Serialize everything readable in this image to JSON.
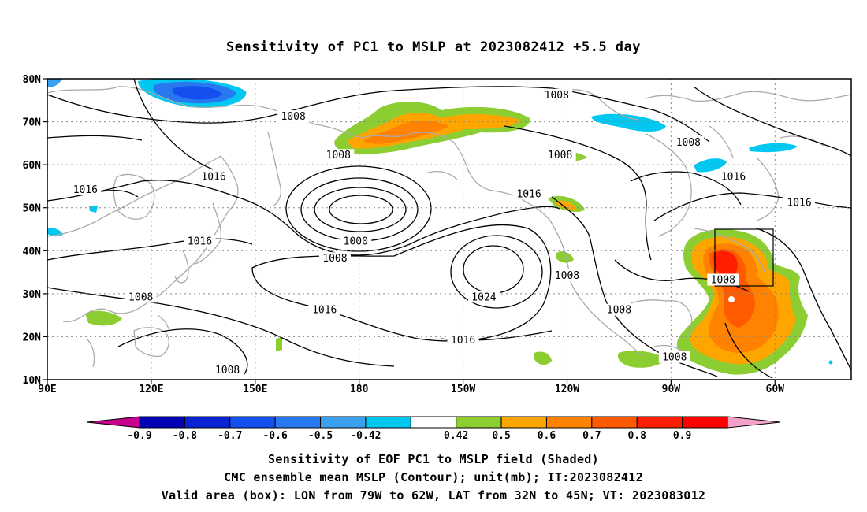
{
  "title": "Sensitivity of PC1 to MSLP at 2023082412 +5.5 day",
  "axes": {
    "lat_labels": [
      "80N",
      "70N",
      "60N",
      "50N",
      "40N",
      "30N",
      "20N",
      "10N"
    ],
    "lon_labels": [
      "90E",
      "120E",
      "150E",
      "180",
      "150W",
      "120W",
      "90W",
      "60W"
    ]
  },
  "contour_labels": [
    {
      "text": "1008",
      "lon": -123,
      "lat": 76
    },
    {
      "text": "1008",
      "lon": 161,
      "lat": 71
    },
    {
      "text": "1008",
      "lon": -85,
      "lat": 65
    },
    {
      "text": "1008",
      "lon": -122,
      "lat": 62
    },
    {
      "text": "1008",
      "lon": 174,
      "lat": 62
    },
    {
      "text": "1016",
      "lon": 101,
      "lat": 54
    },
    {
      "text": "1016",
      "lon": 138,
      "lat": 57
    },
    {
      "text": "1016",
      "lon": -72,
      "lat": 57
    },
    {
      "text": "1016",
      "lon": -131,
      "lat": 53
    },
    {
      "text": "1016",
      "lon": -53,
      "lat": 51
    },
    {
      "text": "1016",
      "lon": 134,
      "lat": 42
    },
    {
      "text": "1000",
      "lon": 179,
      "lat": 42
    },
    {
      "text": "1008",
      "lon": 173,
      "lat": 38
    },
    {
      "text": "1008",
      "lon": -120,
      "lat": 34
    },
    {
      "text": "1008",
      "lon": -75,
      "lat": 33
    },
    {
      "text": "1008",
      "lon": 117,
      "lat": 29
    },
    {
      "text": "1024",
      "lon": -144,
      "lat": 29
    },
    {
      "text": "1016",
      "lon": 170,
      "lat": 26
    },
    {
      "text": "1008",
      "lon": -105,
      "lat": 26
    },
    {
      "text": "1016",
      "lon": -150,
      "lat": 19
    },
    {
      "text": "1008",
      "lon": -89,
      "lat": 15
    },
    {
      "text": "1008",
      "lon": 142,
      "lat": 12
    }
  ],
  "colorbar": {
    "labels": [
      "-0.9",
      "-0.8",
      "-0.7",
      "-0.6",
      "-0.5",
      "-0.42",
      "0.42",
      "0.5",
      "0.6",
      "0.7",
      "0.8",
      "0.9"
    ],
    "colors": [
      "#c8008c",
      "#0000b4",
      "#0a23d2",
      "#1450f0",
      "#2878f0",
      "#3ca0f0",
      "#00c8f0",
      "#ffffff",
      "#8ccd32",
      "#ffa500",
      "#ff8200",
      "#ff5a00",
      "#ff1e00",
      "#ff0000",
      "#f5a0c8"
    ]
  },
  "valid_box": {
    "lon_min": -79,
    "lon_max": -62,
    "lat_min": 32,
    "lat_max": 45
  },
  "captions": {
    "line1": "Sensitivity of EOF PC1 to MSLP field (Shaded)",
    "line2": "CMC ensemble mean MSLP (Contour); unit(mb); IT:2023082412",
    "line3": "Valid area (box): LON from 79W to 62W, LAT from 32N to 45N; VT: 2023083012"
  }
}
